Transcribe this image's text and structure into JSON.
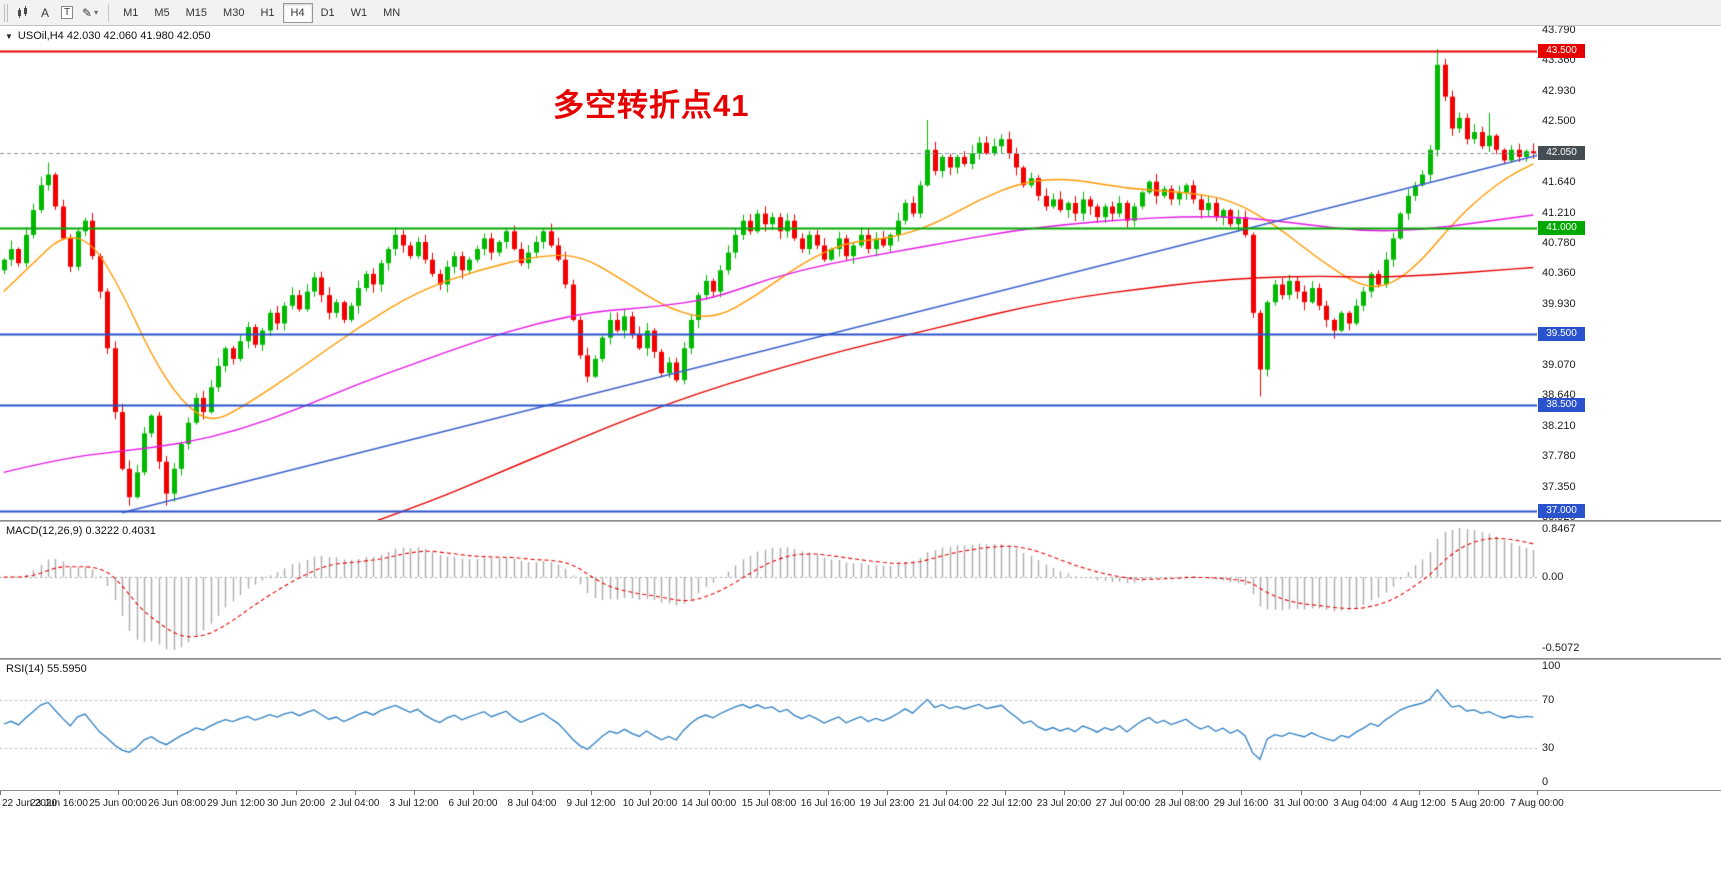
{
  "toolbar": {
    "icons": [
      {
        "name": "candlestick-tool-icon",
        "glyph": "svg-candles"
      },
      {
        "name": "text-tool-icon",
        "glyph": "A"
      },
      {
        "name": "label-tool-icon",
        "glyph": "T"
      },
      {
        "name": "draw-tool-icon",
        "glyph": "✎",
        "caret": "▾"
      }
    ],
    "timeframes": [
      "M1",
      "M5",
      "M15",
      "M30",
      "H1",
      "H4",
      "D1",
      "W1",
      "MN"
    ],
    "active_timeframe": "H4"
  },
  "price_pane": {
    "marker": "▼",
    "symbol_line": "USOil,H4 42.030 42.060 41.980 42.050",
    "annotation": {
      "text": "多空转折点41",
      "color": "#E60000"
    }
  },
  "chart_data": {
    "type": "candlestick",
    "symbol": "USOil",
    "timeframe": "H4",
    "ohlc_current": {
      "open": 42.03,
      "high": 42.06,
      "low": 41.98,
      "close": 42.05
    },
    "y_min": 36.92,
    "y_max": 43.79,
    "first_open": 40.4,
    "closes": [
      40.55,
      40.7,
      40.5,
      40.9,
      41.25,
      41.6,
      41.75,
      41.3,
      40.85,
      40.45,
      40.95,
      41.1,
      40.6,
      40.1,
      39.3,
      38.4,
      37.6,
      37.2,
      37.55,
      38.1,
      38.35,
      37.7,
      37.25,
      37.6,
      37.95,
      38.25,
      38.6,
      38.4,
      38.75,
      39.05,
      39.3,
      39.15,
      39.4,
      39.6,
      39.35,
      39.55,
      39.8,
      39.65,
      39.9,
      40.05,
      39.85,
      40.1,
      40.3,
      40.05,
      39.8,
      39.95,
      39.7,
      39.9,
      40.15,
      40.35,
      40.2,
      40.5,
      40.7,
      40.9,
      40.75,
      40.6,
      40.8,
      40.55,
      40.35,
      40.2,
      40.45,
      40.6,
      40.4,
      40.55,
      40.7,
      40.85,
      40.65,
      40.8,
      40.95,
      40.7,
      40.5,
      40.65,
      40.8,
      40.95,
      40.75,
      40.55,
      40.2,
      39.7,
      39.2,
      38.9,
      39.15,
      39.45,
      39.7,
      39.55,
      39.75,
      39.5,
      39.3,
      39.55,
      39.25,
      38.95,
      39.1,
      38.85,
      39.3,
      39.7,
      40.05,
      40.25,
      40.1,
      40.4,
      40.65,
      40.9,
      41.1,
      40.95,
      41.2,
      41.05,
      41.15,
      40.95,
      41.1,
      40.85,
      40.7,
      40.9,
      40.75,
      40.55,
      40.7,
      40.85,
      40.6,
      40.75,
      40.9,
      40.7,
      40.85,
      40.75,
      40.9,
      41.1,
      41.35,
      41.2,
      41.6,
      42.1,
      41.8,
      42.0,
      41.85,
      42.0,
      41.9,
      42.05,
      42.2,
      42.05,
      42.15,
      42.25,
      42.05,
      41.85,
      41.6,
      41.7,
      41.45,
      41.3,
      41.4,
      41.25,
      41.35,
      41.2,
      41.4,
      41.3,
      41.15,
      41.3,
      41.2,
      41.35,
      41.1,
      41.3,
      41.5,
      41.65,
      41.45,
      41.55,
      41.4,
      41.5,
      41.6,
      41.4,
      41.25,
      41.35,
      41.15,
      41.25,
      41.05,
      41.15,
      40.9,
      39.8,
      39.0,
      39.95,
      40.2,
      40.05,
      40.25,
      40.1,
      39.95,
      40.15,
      39.9,
      39.7,
      39.55,
      39.8,
      39.65,
      39.9,
      40.1,
      40.35,
      40.2,
      40.55,
      40.85,
      41.2,
      41.45,
      41.6,
      41.75,
      42.1,
      43.3,
      42.85,
      42.4,
      42.55,
      42.25,
      42.35,
      42.15,
      42.3,
      42.1,
      41.95,
      42.1,
      42.0,
      42.08,
      42.05
    ],
    "wick_overrides": [
      [
        6,
        "h",
        41.92
      ],
      [
        17,
        "l",
        37.08
      ],
      [
        22,
        "l",
        37.08
      ],
      [
        125,
        "h",
        42.52
      ],
      [
        170,
        "l",
        38.62
      ],
      [
        194,
        "h",
        43.52
      ],
      [
        201,
        "h",
        42.62
      ]
    ],
    "colors": {
      "up": "#00B900",
      "down": "#F20000"
    },
    "y_axis": {
      "ticks": [
        "43.790",
        "43.360",
        "42.930",
        "42.500",
        "41.640",
        "41.210",
        "40.780",
        "40.360",
        "39.930",
        "39.500",
        "39.070",
        "38.640",
        "38.210",
        "37.780",
        "37.350",
        "36.920"
      ],
      "badges": [
        {
          "value": 43.5,
          "label": "43.500",
          "color": "#E60000"
        },
        {
          "value": 42.05,
          "label": "42.050",
          "color": "#444C54"
        },
        {
          "value": 41.0,
          "label": "41.000",
          "color": "#00A800"
        },
        {
          "value": 39.5,
          "label": "39.500",
          "color": "#2952CC"
        },
        {
          "value": 38.5,
          "label": "38.500",
          "color": "#2952CC"
        },
        {
          "value": 37.0,
          "label": "37.000",
          "color": "#2952CC"
        }
      ]
    },
    "hlines": [
      {
        "value": 43.5,
        "color": "#E60000",
        "width": 2
      },
      {
        "value": 41.0,
        "color": "#00A800",
        "width": 2
      },
      {
        "value": 39.5,
        "color": "#2952CC",
        "width": 2
      },
      {
        "value": 38.5,
        "color": "#2952CC",
        "width": 2
      },
      {
        "value": 37.0,
        "color": "#2952CC",
        "width": 2
      }
    ],
    "price_line": {
      "value": 42.05,
      "color": "#8593A2",
      "dash": [
        4,
        3
      ]
    },
    "trendline": {
      "from_bar": 16,
      "from_price": 36.98,
      "to_bar": 208,
      "to_price": 42.02,
      "color": "#3A5FCD"
    },
    "moving_averages": [
      {
        "name": "ma-fast-orange",
        "color": "#FF9900",
        "points": [
          [
            0,
            40.1
          ],
          [
            4,
            40.5
          ],
          [
            8,
            40.9
          ],
          [
            12,
            40.8
          ],
          [
            16,
            40.1
          ],
          [
            20,
            39.2
          ],
          [
            24,
            38.55
          ],
          [
            28,
            38.25
          ],
          [
            32,
            38.45
          ],
          [
            40,
            39.0
          ],
          [
            48,
            39.6
          ],
          [
            56,
            40.1
          ],
          [
            64,
            40.4
          ],
          [
            72,
            40.6
          ],
          [
            78,
            40.62
          ],
          [
            84,
            40.25
          ],
          [
            90,
            39.85
          ],
          [
            96,
            39.7
          ],
          [
            102,
            40.05
          ],
          [
            108,
            40.5
          ],
          [
            114,
            40.8
          ],
          [
            120,
            40.85
          ],
          [
            126,
            41.05
          ],
          [
            132,
            41.4
          ],
          [
            138,
            41.65
          ],
          [
            144,
            41.7
          ],
          [
            152,
            41.55
          ],
          [
            160,
            41.5
          ],
          [
            166,
            41.4
          ],
          [
            172,
            41.05
          ],
          [
            178,
            40.55
          ],
          [
            184,
            40.15
          ],
          [
            188,
            40.2
          ],
          [
            192,
            40.55
          ],
          [
            196,
            41.05
          ],
          [
            200,
            41.45
          ],
          [
            204,
            41.75
          ],
          [
            207,
            41.9
          ]
        ]
      },
      {
        "name": "ma-mid-magenta",
        "color": "#E619E6",
        "points": [
          [
            0,
            37.55
          ],
          [
            8,
            37.75
          ],
          [
            16,
            37.85
          ],
          [
            24,
            37.95
          ],
          [
            32,
            38.15
          ],
          [
            40,
            38.45
          ],
          [
            48,
            38.8
          ],
          [
            56,
            39.1
          ],
          [
            64,
            39.4
          ],
          [
            72,
            39.65
          ],
          [
            80,
            39.82
          ],
          [
            88,
            39.88
          ],
          [
            96,
            40.0
          ],
          [
            104,
            40.3
          ],
          [
            112,
            40.5
          ],
          [
            120,
            40.65
          ],
          [
            128,
            40.8
          ],
          [
            136,
            40.95
          ],
          [
            144,
            41.05
          ],
          [
            152,
            41.12
          ],
          [
            160,
            41.16
          ],
          [
            168,
            41.15
          ],
          [
            176,
            41.05
          ],
          [
            184,
            40.95
          ],
          [
            192,
            40.97
          ],
          [
            200,
            41.08
          ],
          [
            207,
            41.18
          ]
        ]
      },
      {
        "name": "ma-slow-red",
        "color": "#E60000",
        "points": [
          [
            50,
            36.85
          ],
          [
            58,
            37.15
          ],
          [
            66,
            37.5
          ],
          [
            74,
            37.85
          ],
          [
            82,
            38.2
          ],
          [
            90,
            38.52
          ],
          [
            98,
            38.8
          ],
          [
            106,
            39.05
          ],
          [
            114,
            39.28
          ],
          [
            122,
            39.48
          ],
          [
            130,
            39.68
          ],
          [
            138,
            39.88
          ],
          [
            146,
            40.03
          ],
          [
            154,
            40.14
          ],
          [
            162,
            40.24
          ],
          [
            170,
            40.3
          ],
          [
            178,
            40.32
          ],
          [
            186,
            40.3
          ],
          [
            194,
            40.34
          ],
          [
            202,
            40.4
          ],
          [
            207,
            40.44
          ]
        ]
      }
    ]
  },
  "macd": {
    "label": "MACD(12,26,9) 0.3222 0.4031",
    "max_label": "0.8467",
    "zero_label": "0.00",
    "min_label": "-0.5072",
    "params": {
      "fast": 12,
      "slow": 26,
      "signal": 9
    },
    "histogram_color": "#ACACAC",
    "signal_color": "#E60000"
  },
  "rsi": {
    "label": "RSI(14) 55.5950",
    "labels": [
      "100",
      "70",
      "30",
      "0"
    ],
    "levels": [
      70,
      30
    ],
    "line_color": "#2E7FC2",
    "level_color": "#B0B0B0"
  },
  "time_axis": {
    "bars_per_label": 8,
    "labels": [
      "22 Jun 2020",
      "23 Jun 16:00",
      "25 Jun 00:00",
      "26 Jun 08:00",
      "29 Jun 12:00",
      "30 Jun 20:00",
      "2 Jul 04:00",
      "3 Jul 12:00",
      "6 Jul 20:00",
      "8 Jul 04:00",
      "9 Jul 12:00",
      "10 Jul 20:00",
      "14 Jul 00:00",
      "15 Jul 08:00",
      "16 Jul 16:00",
      "19 Jul 23:00",
      "21 Jul 04:00",
      "22 Jul 12:00",
      "23 Jul 20:00",
      "27 Jul 00:00",
      "28 Jul 08:00",
      "29 Jul 16:00",
      "31 Jul 00:00",
      "3 Aug 04:00",
      "4 Aug 12:00",
      "5 Aug 20:00",
      "7 Aug 00:00"
    ]
  }
}
